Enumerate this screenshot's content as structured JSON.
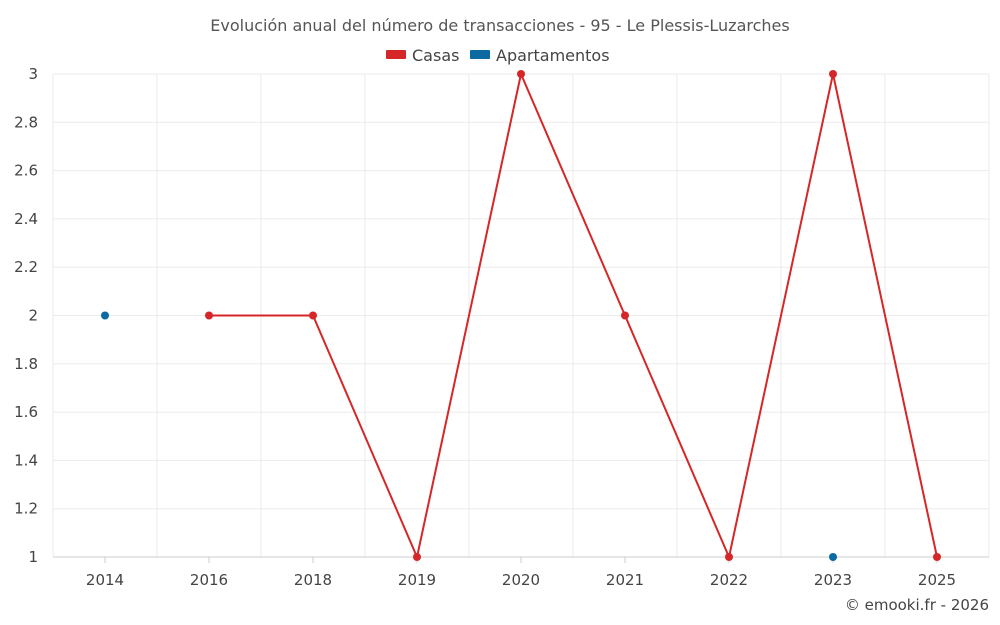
{
  "chart_data": {
    "type": "line",
    "title": "Evolución anual del número de transacciones - 95 - Le Plessis-Luzarches",
    "categories": [
      "2014",
      "2016",
      "2018",
      "2019",
      "2020",
      "2021",
      "2022",
      "2023",
      "2025"
    ],
    "series": [
      {
        "name": "Casas",
        "color": "#d62728",
        "values": [
          null,
          2,
          2,
          1,
          3,
          2,
          1,
          3,
          1
        ]
      },
      {
        "name": "Apartamentos",
        "color": "#0b6aa2",
        "values": [
          2,
          null,
          null,
          null,
          null,
          null,
          null,
          1,
          null
        ]
      }
    ],
    "ylim": [
      1,
      3
    ],
    "yticks": [
      "1",
      "1.2",
      "1.4",
      "1.6",
      "1.8",
      "2",
      "2.2",
      "2.4",
      "2.6",
      "2.8",
      "3"
    ],
    "xlabel": "",
    "ylabel": "",
    "grid": true,
    "legend_position": "top-center"
  },
  "credit": "© emooki.fr - 2026"
}
